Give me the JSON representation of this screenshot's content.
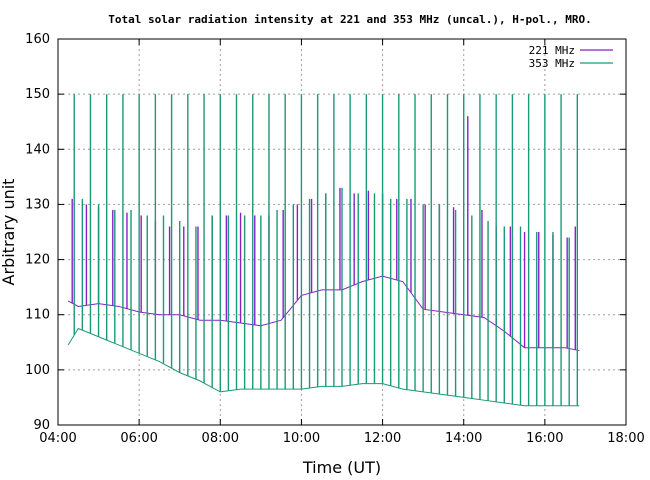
{
  "chart_data": {
    "type": "line",
    "title": "Total solar radiation intensity at 221 and 353 MHz (uncal.), H-pol., MRO.",
    "xlabel": "Time (UT)",
    "ylabel": "Arbitrary unit",
    "xlim": [
      4,
      18
    ],
    "ylim": [
      90,
      160
    ],
    "xticks": [
      4,
      6,
      8,
      10,
      12,
      14,
      16,
      18
    ],
    "xtick_labels": [
      "04:00",
      "06:00",
      "08:00",
      "10:00",
      "12:00",
      "14:00",
      "16:00",
      "18:00"
    ],
    "yticks": [
      90,
      100,
      110,
      120,
      130,
      140,
      150,
      160
    ],
    "ytick_labels": [
      "90",
      "100",
      "110",
      "120",
      "130",
      "140",
      "150",
      "160"
    ],
    "grid": true,
    "legend_position": "top-right",
    "series": [
      {
        "name": "221 MHz",
        "color": "#8b1fc8",
        "x": [
          4.25,
          4.5,
          5.0,
          5.5,
          6.0,
          6.5,
          7.0,
          7.5,
          8.0,
          8.5,
          9.0,
          9.5,
          10.0,
          10.5,
          11.0,
          11.5,
          12.0,
          12.5,
          13.0,
          13.5,
          14.0,
          14.5,
          15.0,
          15.5,
          16.0,
          16.5,
          16.85
        ],
        "values": [
          112.5,
          111.5,
          112.0,
          111.5,
          110.5,
          110.0,
          110.0,
          109.0,
          109.0,
          108.5,
          108.0,
          109.0,
          113.5,
          114.5,
          114.5,
          116.0,
          117.0,
          116.0,
          111.0,
          110.5,
          110.0,
          109.5,
          107.0,
          104.0,
          104.0,
          104.0,
          103.5
        ],
        "spikes": {
          "x": [
            4.35,
            4.7,
            5.0,
            5.35,
            5.7,
            6.05,
            6.4,
            6.75,
            7.1,
            7.45,
            7.8,
            8.15,
            8.5,
            8.85,
            9.2,
            9.55,
            9.9,
            10.25,
            10.6,
            10.95,
            11.3,
            11.65,
            12.0,
            12.35,
            12.7,
            13.05,
            13.4,
            13.75,
            14.1,
            14.45,
            14.8,
            15.15,
            15.5,
            15.85,
            16.2,
            16.55,
            16.75
          ],
          "values": [
            131,
            130,
            129.5,
            129,
            128.5,
            128,
            127,
            126,
            126,
            126,
            128,
            128,
            128.5,
            128,
            128,
            129,
            130,
            131,
            132,
            133,
            132,
            132.5,
            132,
            131,
            131,
            130,
            130,
            129.5,
            146,
            129,
            126,
            126,
            125,
            125,
            124.5,
            124,
            126
          ]
        }
      },
      {
        "name": "353 MHz",
        "color": "#1a9a78",
        "x": [
          4.25,
          4.5,
          5.0,
          5.5,
          6.0,
          6.5,
          7.0,
          7.5,
          8.0,
          8.5,
          9.0,
          9.5,
          10.0,
          10.5,
          11.0,
          11.5,
          12.0,
          12.5,
          13.0,
          13.5,
          14.0,
          14.5,
          15.0,
          15.5,
          16.0,
          16.5,
          16.85
        ],
        "values": [
          104.5,
          107.5,
          106.0,
          104.5,
          103.0,
          101.5,
          99.5,
          98.0,
          96.0,
          96.5,
          96.5,
          96.5,
          96.5,
          97.0,
          97.0,
          97.5,
          97.5,
          96.5,
          96.0,
          95.5,
          95.0,
          94.5,
          94.0,
          93.5,
          93.5,
          93.5,
          93.5
        ],
        "spikes": {
          "x": [
            4.4,
            4.6,
            4.8,
            5.0,
            5.2,
            5.4,
            5.6,
            5.8,
            6.0,
            6.2,
            6.4,
            6.6,
            6.8,
            7.0,
            7.2,
            7.4,
            7.6,
            7.8,
            8.0,
            8.2,
            8.4,
            8.6,
            8.8,
            9.0,
            9.2,
            9.4,
            9.6,
            9.8,
            10.0,
            10.2,
            10.4,
            10.6,
            10.8,
            11.0,
            11.2,
            11.4,
            11.6,
            11.8,
            12.0,
            12.2,
            12.4,
            12.6,
            12.8,
            13.0,
            13.2,
            13.4,
            13.6,
            13.8,
            14.0,
            14.2,
            14.4,
            14.6,
            14.8,
            15.0,
            15.2,
            15.4,
            15.6,
            15.8,
            16.0,
            16.2,
            16.4,
            16.6,
            16.8
          ],
          "values": [
            150,
            131,
            150,
            130,
            150,
            129,
            150,
            129,
            150,
            128,
            150,
            128,
            150,
            127,
            150,
            126,
            150,
            128,
            150,
            128,
            150,
            128,
            150,
            128,
            150,
            129,
            150,
            130,
            150,
            131,
            150,
            132,
            150,
            133,
            150,
            132,
            150,
            132,
            150,
            131,
            150,
            131,
            150,
            130,
            150,
            130,
            150,
            129,
            150,
            128,
            150,
            127,
            150,
            126,
            150,
            126,
            150,
            125,
            150,
            125,
            150,
            124,
            150
          ]
        }
      }
    ]
  }
}
